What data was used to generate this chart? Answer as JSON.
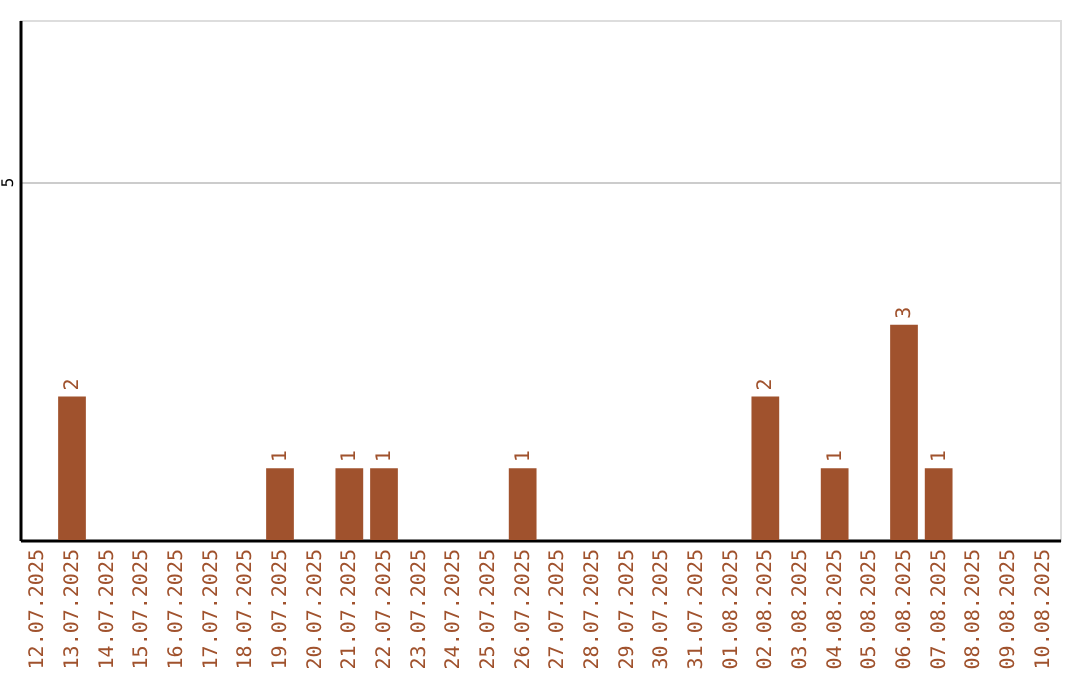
{
  "chart_data": {
    "type": "bar",
    "categories": [
      "12.07.2025",
      "13.07.2025",
      "14.07.2025",
      "15.07.2025",
      "16.07.2025",
      "17.07.2025",
      "18.07.2025",
      "19.07.2025",
      "20.07.2025",
      "21.07.2025",
      "22.07.2025",
      "23.07.2025",
      "24.07.2025",
      "25.07.2025",
      "26.07.2025",
      "27.07.2025",
      "28.07.2025",
      "29.07.2025",
      "30.07.2025",
      "31.07.2025",
      "01.08.2025",
      "02.08.2025",
      "03.08.2025",
      "04.08.2025",
      "05.08.2025",
      "06.08.2025",
      "07.08.2025",
      "08.08.2025",
      "09.08.2025",
      "10.08.2025"
    ],
    "values": [
      null,
      2,
      null,
      null,
      null,
      null,
      null,
      1,
      null,
      1,
      1,
      null,
      null,
      null,
      1,
      null,
      null,
      null,
      null,
      null,
      null,
      2,
      null,
      1,
      null,
      3,
      1,
      null,
      null,
      null
    ],
    "color": "#a0522d",
    "ylim": [
      0,
      7.25
    ],
    "yticks": [
      5
    ],
    "grid": "y",
    "data_labels": true
  }
}
